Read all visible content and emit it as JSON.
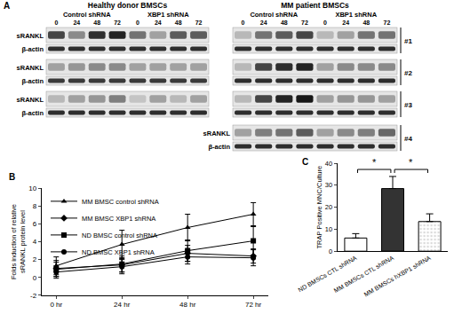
{
  "blot": {
    "panel": "A",
    "groups": [
      {
        "title": "Healthy donor BMSCs",
        "conditions": [
          "Control shRNA",
          "XBP1 shRNA"
        ],
        "times": [
          0,
          24,
          48,
          72
        ]
      },
      {
        "title": "MM patient BMSCs",
        "conditions": [
          "Control shRNA",
          "XBP1 shRNA"
        ],
        "times": [
          0,
          24,
          48,
          72
        ]
      }
    ],
    "rows": [
      {
        "label": "#1",
        "blots": [
          {
            "name": "sRANKL",
            "bands": [
              [
                0.7,
                0.4,
                0.8,
                0.85,
                0.5,
                0.3,
                0.6,
                0.6
              ],
              [
                0.2,
                0.5,
                0.6,
                0.7,
                0.2,
                0.3,
                0.5,
                0.5
              ]
            ]
          },
          {
            "name": "β-actin",
            "bands": [
              [
                0.8,
                0.8,
                0.8,
                0.8,
                0.8,
                0.8,
                0.8,
                0.8
              ],
              [
                0.8,
                0.8,
                0.8,
                0.8,
                0.8,
                0.8,
                0.8,
                0.8
              ]
            ]
          }
        ]
      },
      {
        "label": "#2",
        "blots": [
          {
            "name": "sRANKL",
            "bands": [
              [
                0.3,
                0.35,
                0.4,
                0.4,
                0.3,
                0.3,
                0.3,
                0.3
              ],
              [
                0.2,
                0.7,
                0.8,
                0.85,
                0.3,
                0.4,
                0.4,
                0.4
              ]
            ]
          },
          {
            "name": "β-actin",
            "bands": [
              [
                0.75,
                0.75,
                0.75,
                0.75,
                0.75,
                0.75,
                0.75,
                0.75
              ],
              [
                0.8,
                0.8,
                0.8,
                0.8,
                0.8,
                0.8,
                0.8,
                0.8
              ]
            ]
          }
        ]
      },
      {
        "label": "#3",
        "blots": [
          {
            "name": "sRANKL",
            "bands": [
              [
                0.2,
                0.3,
                0.35,
                0.45,
                0.15,
                0.3,
                0.2,
                0.3
              ],
              [
                0.2,
                0.7,
                0.85,
                0.9,
                0.3,
                0.35,
                0.35,
                0.3
              ]
            ]
          },
          {
            "name": "β-actin",
            "bands": [
              [
                0.8,
                0.8,
                0.8,
                0.8,
                0.8,
                0.8,
                0.8,
                0.8
              ],
              [
                0.8,
                0.8,
                0.8,
                0.8,
                0.8,
                0.8,
                0.8,
                0.8
              ]
            ]
          }
        ]
      },
      {
        "label": "#4",
        "blots": [
          {
            "name": "sRANKL",
            "bands": [
              null,
              [
                0.3,
                0.45,
                0.5,
                0.6,
                0.3,
                0.4,
                0.45,
                0.55
              ]
            ]
          },
          {
            "name": "β-actin",
            "bands": [
              null,
              [
                0.8,
                0.8,
                0.8,
                0.8,
                0.8,
                0.8,
                0.8,
                0.8
              ]
            ]
          }
        ]
      }
    ]
  },
  "chart_data": [
    {
      "panel": "B",
      "type": "line",
      "categories": [
        "0 hr",
        "24 hr",
        "48 hr",
        "72 hr"
      ],
      "ylabel": [
        "Folds induction of relative",
        "sRANKL protein level"
      ],
      "ylim": [
        -2,
        10
      ],
      "yticks": [
        -2,
        0,
        2,
        4,
        6,
        8,
        10
      ],
      "grid": false,
      "legend": "upper left",
      "series": [
        {
          "name": "MM BMSC control shRNA",
          "color": "#000000",
          "marker": "triangle-up",
          "values": [
            1.3,
            3.7,
            5.6,
            7.1
          ],
          "errors": [
            1.0,
            1.6,
            1.5,
            1.3
          ]
        },
        {
          "name": "MM BMSC XBP1 shRNA",
          "color": "#000000",
          "marker": "diamond",
          "values": [
            1.0,
            1.4,
            2.7,
            2.4
          ],
          "errors": [
            0.9,
            0.8,
            0.9,
            0.8
          ]
        },
        {
          "name": "ND BMSC control shRNA",
          "color": "#000000",
          "marker": "square",
          "values": [
            0.9,
            1.5,
            3.0,
            4.1
          ],
          "errors": [
            0.8,
            0.9,
            1.2,
            1.6
          ]
        },
        {
          "name": "ND BMSC XBP1 shRNA",
          "color": "#000000",
          "marker": "circle",
          "values": [
            0.6,
            1.2,
            2.3,
            2.2
          ],
          "errors": [
            0.7,
            0.8,
            0.8,
            0.9
          ]
        }
      ]
    },
    {
      "panel": "C",
      "type": "bar",
      "categories": [
        "ND BMSCs CTL shRNA",
        "MM BMSCs CTL shRNA",
        "MM BMSCs hXBP1 shRNA"
      ],
      "values": [
        6,
        28.5,
        13.5
      ],
      "errors": [
        2,
        5.5,
        3.5
      ],
      "colors": [
        "#ffffff",
        "#333333",
        "#d9d9d9"
      ],
      "ylabel": "TRAP Positive MNC/Culture",
      "ylim": [
        0,
        40
      ],
      "yticks": [
        0,
        10,
        20,
        30,
        40
      ],
      "grid": false,
      "significance": [
        {
          "between": [
            0,
            1
          ],
          "label": "*"
        },
        {
          "between": [
            1,
            2
          ],
          "label": "*"
        }
      ]
    }
  ]
}
